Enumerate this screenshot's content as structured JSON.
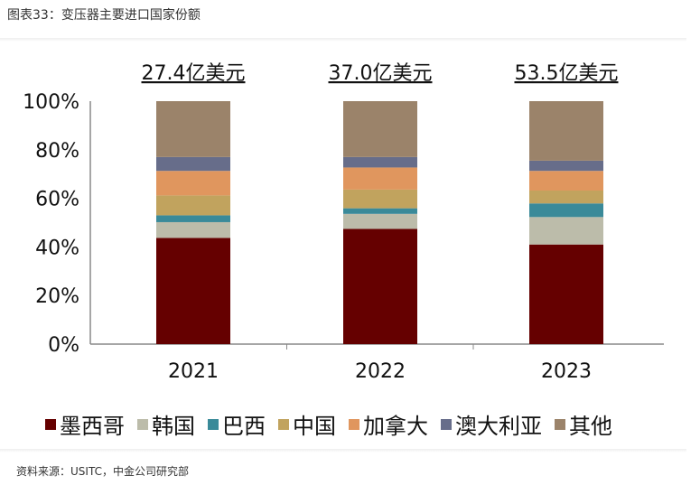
{
  "title": "图表33：变压器主要进口国家份额",
  "source": "资料来源：USITC，中金公司研究部",
  "chart_data": {
    "type": "bar",
    "stacked": true,
    "categories": [
      "2021",
      "2022",
      "2023"
    ],
    "totals": [
      "27.4亿美元",
      "37.0亿美元",
      "53.5亿美元"
    ],
    "ylim": [
      0,
      100
    ],
    "yticks": [
      "0%",
      "20%",
      "40%",
      "60%",
      "80%",
      "100%"
    ],
    "legend_position": "bottom",
    "grid": false,
    "series": [
      {
        "name": "墨西哥",
        "color": "#650000",
        "values": [
          43.7,
          47.4,
          41.0
        ]
      },
      {
        "name": "韩国",
        "color": "#bcbcaa",
        "values": [
          6.5,
          6.2,
          11.3
        ]
      },
      {
        "name": "巴西",
        "color": "#3a8a99",
        "values": [
          2.8,
          2.3,
          5.6
        ]
      },
      {
        "name": "中国",
        "color": "#c1a35e",
        "values": [
          8.2,
          7.7,
          5.3
        ]
      },
      {
        "name": "加拿大",
        "color": "#e0965e",
        "values": [
          10.1,
          9.1,
          8.1
        ]
      },
      {
        "name": "澳大利亚",
        "color": "#676d8a",
        "values": [
          5.7,
          4.3,
          4.2
        ]
      },
      {
        "name": "其他",
        "color": "#9b836a",
        "values": [
          23.0,
          23.0,
          24.5
        ]
      }
    ]
  }
}
